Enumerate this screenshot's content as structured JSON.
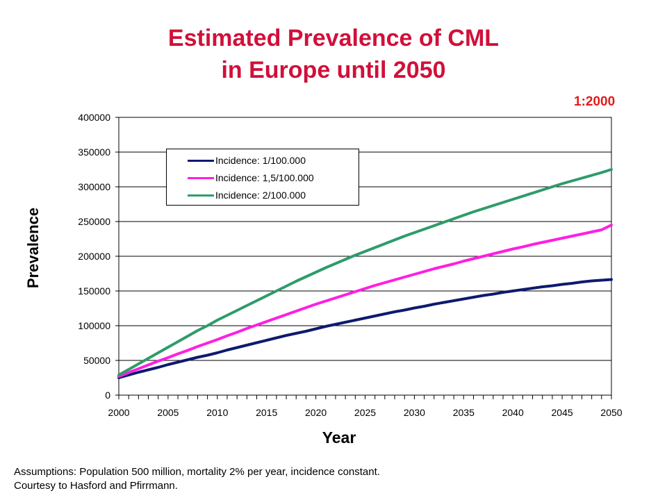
{
  "title": {
    "line1": "Estimated Prevalence of CML",
    "line2": "in Europe until 2050"
  },
  "badge": "1:2000",
  "footnote": {
    "line1": "Assumptions: Population 500 million, mortality 2% per year, incidence constant.",
    "line2": "Courtesy to Hasford and Pfirrmann."
  },
  "chart_data": {
    "type": "line",
    "title": "Estimated Prevalence of CML in Europe until 2050",
    "xlabel": "Year",
    "ylabel": "Prevalence",
    "xlim": [
      2000,
      2050
    ],
    "ylim": [
      0,
      400000
    ],
    "x_ticks": [
      "2000",
      "2005",
      "2010",
      "2015",
      "2020",
      "2025",
      "2030",
      "2035",
      "2040",
      "2045",
      "2050"
    ],
    "y_ticks": [
      "0",
      "50000",
      "100000",
      "150000",
      "200000",
      "250000",
      "300000",
      "350000",
      "400000"
    ],
    "grid": "horizontal",
    "legend_position": "top-left",
    "x": [
      2000,
      2001,
      2002,
      2003,
      2004,
      2005,
      2006,
      2007,
      2008,
      2009,
      2010,
      2011,
      2012,
      2013,
      2014,
      2015,
      2016,
      2017,
      2018,
      2019,
      2020,
      2021,
      2022,
      2023,
      2024,
      2025,
      2026,
      2027,
      2028,
      2029,
      2030,
      2031,
      2032,
      2033,
      2034,
      2035,
      2036,
      2037,
      2038,
      2039,
      2040,
      2041,
      2042,
      2043,
      2044,
      2045,
      2046,
      2047,
      2048,
      2049,
      2050
    ],
    "series": [
      {
        "name": "Incidence: 1/100.000",
        "color": "#0d1a6e",
        "values": [
          25000,
          29000,
          33000,
          36500,
          40000,
          44000,
          47500,
          51000,
          54500,
          57500,
          61000,
          65000,
          68500,
          72000,
          75500,
          79000,
          82500,
          86000,
          89000,
          92000,
          95500,
          99000,
          102000,
          105000,
          108000,
          111000,
          114000,
          117000,
          120000,
          122500,
          125500,
          128000,
          131000,
          133500,
          136000,
          138500,
          141000,
          143500,
          145500,
          148000,
          150000,
          152000,
          154000,
          156000,
          157500,
          159500,
          161000,
          163000,
          164500,
          165500,
          166500
        ]
      },
      {
        "name": "Incidence: 1,5/100.000",
        "color": "#ff1ee3",
        "values": [
          27000,
          32500,
          38000,
          43500,
          49000,
          54000,
          59500,
          64500,
          70000,
          75000,
          80000,
          85500,
          90500,
          96000,
          101000,
          106000,
          111000,
          116000,
          121000,
          126000,
          131000,
          135500,
          140000,
          144500,
          149000,
          153500,
          158000,
          162000,
          166000,
          170000,
          174000,
          178000,
          182000,
          185500,
          189000,
          193000,
          196500,
          200000,
          203500,
          207000,
          210500,
          213500,
          217000,
          220000,
          223000,
          226000,
          229000,
          232000,
          235000,
          238000,
          245000
        ]
      },
      {
        "name": "Incidence: 2/100.000",
        "color": "#2e9c6a",
        "values": [
          29000,
          37000,
          45000,
          53000,
          61000,
          69000,
          77000,
          85000,
          93000,
          100000,
          108000,
          115000,
          122000,
          129000,
          136000,
          143000,
          150000,
          157000,
          164000,
          170500,
          177000,
          183500,
          189500,
          195500,
          201500,
          207000,
          212500,
          218000,
          223500,
          229000,
          234000,
          239000,
          244000,
          249000,
          254000,
          259000,
          264000,
          268500,
          273000,
          277500,
          282000,
          286500,
          291000,
          295500,
          300000,
          304500,
          308500,
          312500,
          316500,
          320500,
          325000
        ]
      }
    ]
  }
}
